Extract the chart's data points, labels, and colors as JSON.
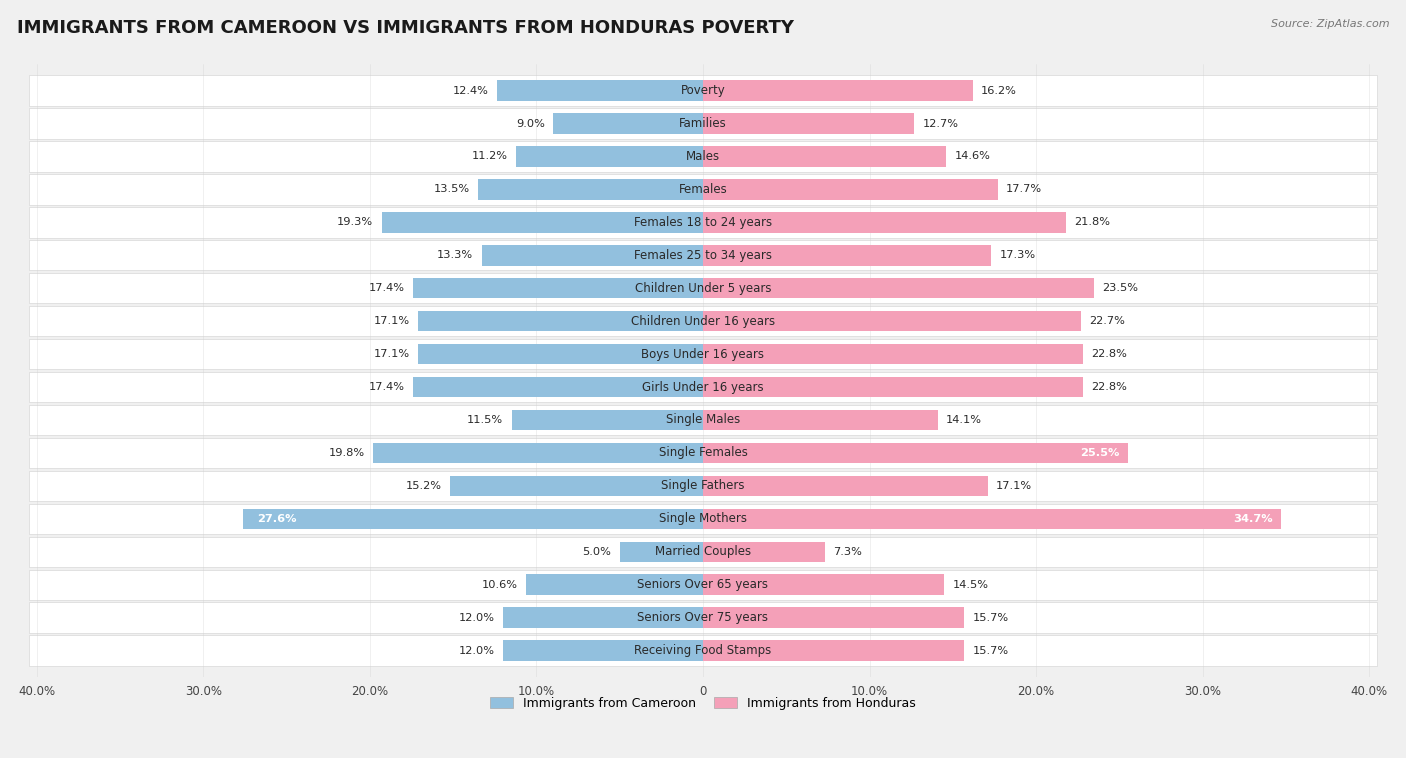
{
  "title": "IMMIGRANTS FROM CAMEROON VS IMMIGRANTS FROM HONDURAS POVERTY",
  "source": "Source: ZipAtlas.com",
  "categories": [
    "Poverty",
    "Families",
    "Males",
    "Females",
    "Females 18 to 24 years",
    "Females 25 to 34 years",
    "Children Under 5 years",
    "Children Under 16 years",
    "Boys Under 16 years",
    "Girls Under 16 years",
    "Single Males",
    "Single Females",
    "Single Fathers",
    "Single Mothers",
    "Married Couples",
    "Seniors Over 65 years",
    "Seniors Over 75 years",
    "Receiving Food Stamps"
  ],
  "cameroon_values": [
    12.4,
    9.0,
    11.2,
    13.5,
    19.3,
    13.3,
    17.4,
    17.1,
    17.1,
    17.4,
    11.5,
    19.8,
    15.2,
    27.6,
    5.0,
    10.6,
    12.0,
    12.0
  ],
  "honduras_values": [
    16.2,
    12.7,
    14.6,
    17.7,
    21.8,
    17.3,
    23.5,
    22.7,
    22.8,
    22.8,
    14.1,
    25.5,
    17.1,
    34.7,
    7.3,
    14.5,
    15.7,
    15.7
  ],
  "cameroon_color": "#92c0de",
  "honduras_color": "#f4a0b8",
  "background_color": "#f0f0f0",
  "bar_bg_color": "#ffffff",
  "bar_bg_edge": "#d8d8d8",
  "axis_max": 40.0,
  "legend_cameroon": "Immigrants from Cameroon",
  "legend_honduras": "Immigrants from Honduras",
  "title_fontsize": 13,
  "label_fontsize": 8.5,
  "value_fontsize": 8.2,
  "tick_labels": [
    "40.0%",
    "30.0%",
    "20.0%",
    "10.0%",
    "0",
    "10.0%",
    "20.0%",
    "30.0%",
    "40.0%"
  ],
  "tick_positions": [
    -40,
    -30,
    -20,
    -10,
    0,
    10,
    20,
    30,
    40
  ],
  "white_text_threshold_hon": 24.0,
  "white_text_threshold_cam": 25.0
}
